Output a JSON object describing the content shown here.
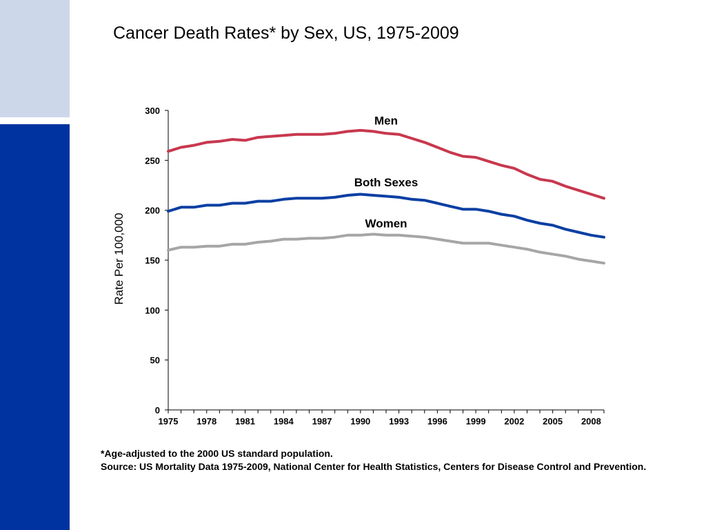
{
  "slide": {
    "title": "Cancer Death Rates* by Sex, US, 1975-2009",
    "footnote": "*Age-adjusted to the 2000 US standard population.",
    "source": "Source: US Mortality Data 1975-2009, National Center for Health Statistics, Centers for Disease Control and Prevention.",
    "colors": {
      "side_light": "#cdd7ea",
      "side_dark": "#0033a0"
    }
  },
  "chart_data": {
    "type": "line",
    "title": "Cancer Death Rates* by Sex, US, 1975-2009",
    "xlabel": "",
    "ylabel": "Rate Per 100,000",
    "ylim": [
      0,
      300
    ],
    "xlim": [
      1975,
      2009
    ],
    "yticks": [
      "0",
      "50",
      "100",
      "150",
      "200",
      "250",
      "300"
    ],
    "xticks": [
      "1975",
      "1978",
      "1981",
      "1984",
      "1987",
      "1990",
      "1993",
      "1996",
      "1999",
      "2002",
      "2005",
      "2008"
    ],
    "grid": false,
    "legend": "direct labels",
    "x": [
      1975,
      1976,
      1977,
      1978,
      1979,
      1980,
      1981,
      1982,
      1983,
      1984,
      1985,
      1986,
      1987,
      1988,
      1989,
      1990,
      1991,
      1992,
      1993,
      1994,
      1995,
      1996,
      1997,
      1998,
      1999,
      2000,
      2001,
      2002,
      2003,
      2004,
      2005,
      2006,
      2007,
      2008,
      2009
    ],
    "series": [
      {
        "name": "Men",
        "color": "#c8384e",
        "values": [
          259,
          263,
          265,
          268,
          269,
          271,
          270,
          273,
          274,
          275,
          276,
          276,
          276,
          277,
          279,
          280,
          279,
          277,
          276,
          272,
          268,
          263,
          258,
          254,
          253,
          249,
          245,
          242,
          236,
          231,
          229,
          224,
          220,
          216,
          212
        ]
      },
      {
        "name": "Both Sexes",
        "color": "#0a3fa3",
        "values": [
          199,
          203,
          203,
          205,
          205,
          207,
          207,
          209,
          209,
          211,
          212,
          212,
          212,
          213,
          215,
          216,
          215,
          214,
          213,
          211,
          210,
          207,
          204,
          201,
          201,
          199,
          196,
          194,
          190,
          187,
          185,
          181,
          178,
          175,
          173
        ]
      },
      {
        "name": "Women",
        "color": "#a6a6a6",
        "values": [
          160,
          163,
          163,
          164,
          164,
          166,
          166,
          168,
          169,
          171,
          171,
          172,
          172,
          173,
          175,
          175,
          176,
          175,
          175,
          174,
          173,
          171,
          169,
          167,
          167,
          167,
          165,
          163,
          161,
          158,
          156,
          154,
          151,
          149,
          147
        ]
      }
    ]
  }
}
